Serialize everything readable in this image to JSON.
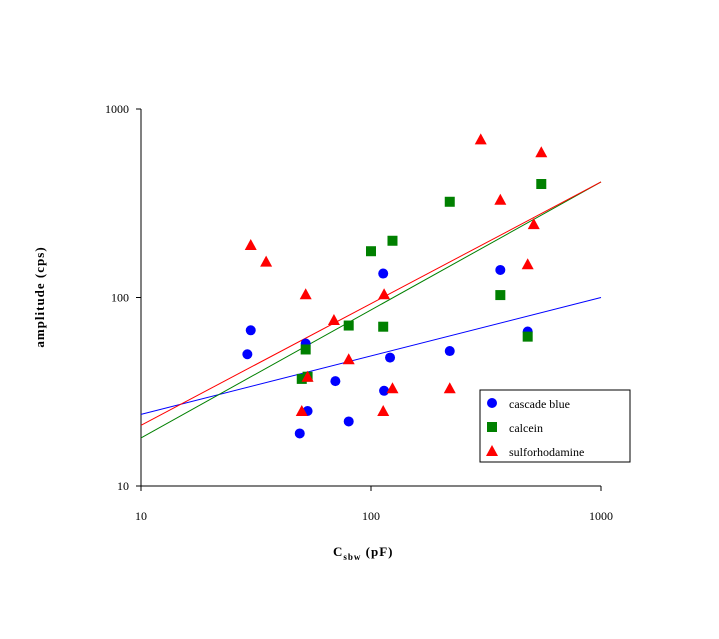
{
  "chart_data": {
    "type": "scatter",
    "xscale": "log",
    "yscale": "log",
    "xlim": [
      10,
      1000
    ],
    "ylim": [
      10,
      1000
    ],
    "xlabel": "C",
    "xlabel_sub": "sbw",
    "xlabel_unit": "(pF)",
    "ylabel": "amplitude (cps)",
    "x_ticks": [
      "10",
      "100",
      "1000"
    ],
    "y_ticks": [
      "10",
      "100",
      "1000"
    ],
    "grid": false,
    "legend_position": "bottom-right",
    "series": [
      {
        "name": "cascade blue",
        "marker": "circle",
        "color": "#0000ff",
        "points": [
          [
            29,
            50
          ],
          [
            30,
            67
          ],
          [
            52,
            57
          ],
          [
            49,
            19
          ],
          [
            53,
            25
          ],
          [
            70,
            36
          ],
          [
            80,
            22
          ],
          [
            113,
            134
          ],
          [
            121,
            48
          ],
          [
            114,
            32
          ],
          [
            220,
            52
          ],
          [
            365,
            140
          ],
          [
            480,
            66
          ]
        ]
      },
      {
        "name": "calcein",
        "marker": "square",
        "color": "#008000",
        "points": [
          [
            50,
            37
          ],
          [
            52,
            53
          ],
          [
            53,
            38
          ],
          [
            80,
            71
          ],
          [
            100,
            176
          ],
          [
            113,
            70
          ],
          [
            124,
            200
          ],
          [
            220,
            322
          ],
          [
            365,
            103
          ],
          [
            480,
            62
          ],
          [
            550,
            400
          ]
        ]
      },
      {
        "name": "sulforhodamine",
        "marker": "triangle",
        "color": "#ff0000",
        "points": [
          [
            30,
            190
          ],
          [
            35,
            155
          ],
          [
            50,
            25
          ],
          [
            52,
            104
          ],
          [
            53,
            38
          ],
          [
            69,
            76
          ],
          [
            80,
            47
          ],
          [
            114,
            104
          ],
          [
            113,
            25
          ],
          [
            124,
            33
          ],
          [
            220,
            33
          ],
          [
            300,
            690
          ],
          [
            365,
            330
          ],
          [
            480,
            150
          ],
          [
            510,
            245
          ],
          [
            550,
            590
          ]
        ]
      }
    ],
    "trendlines": [
      {
        "color": "#0000ff",
        "x": [
          10,
          1000
        ],
        "y": [
          24,
          100
        ]
      },
      {
        "color": "#008000",
        "x": [
          10,
          1000
        ],
        "y": [
          18,
          410
        ]
      },
      {
        "color": "#ff0000",
        "x": [
          10,
          1000
        ],
        "y": [
          21,
          410
        ]
      }
    ]
  }
}
